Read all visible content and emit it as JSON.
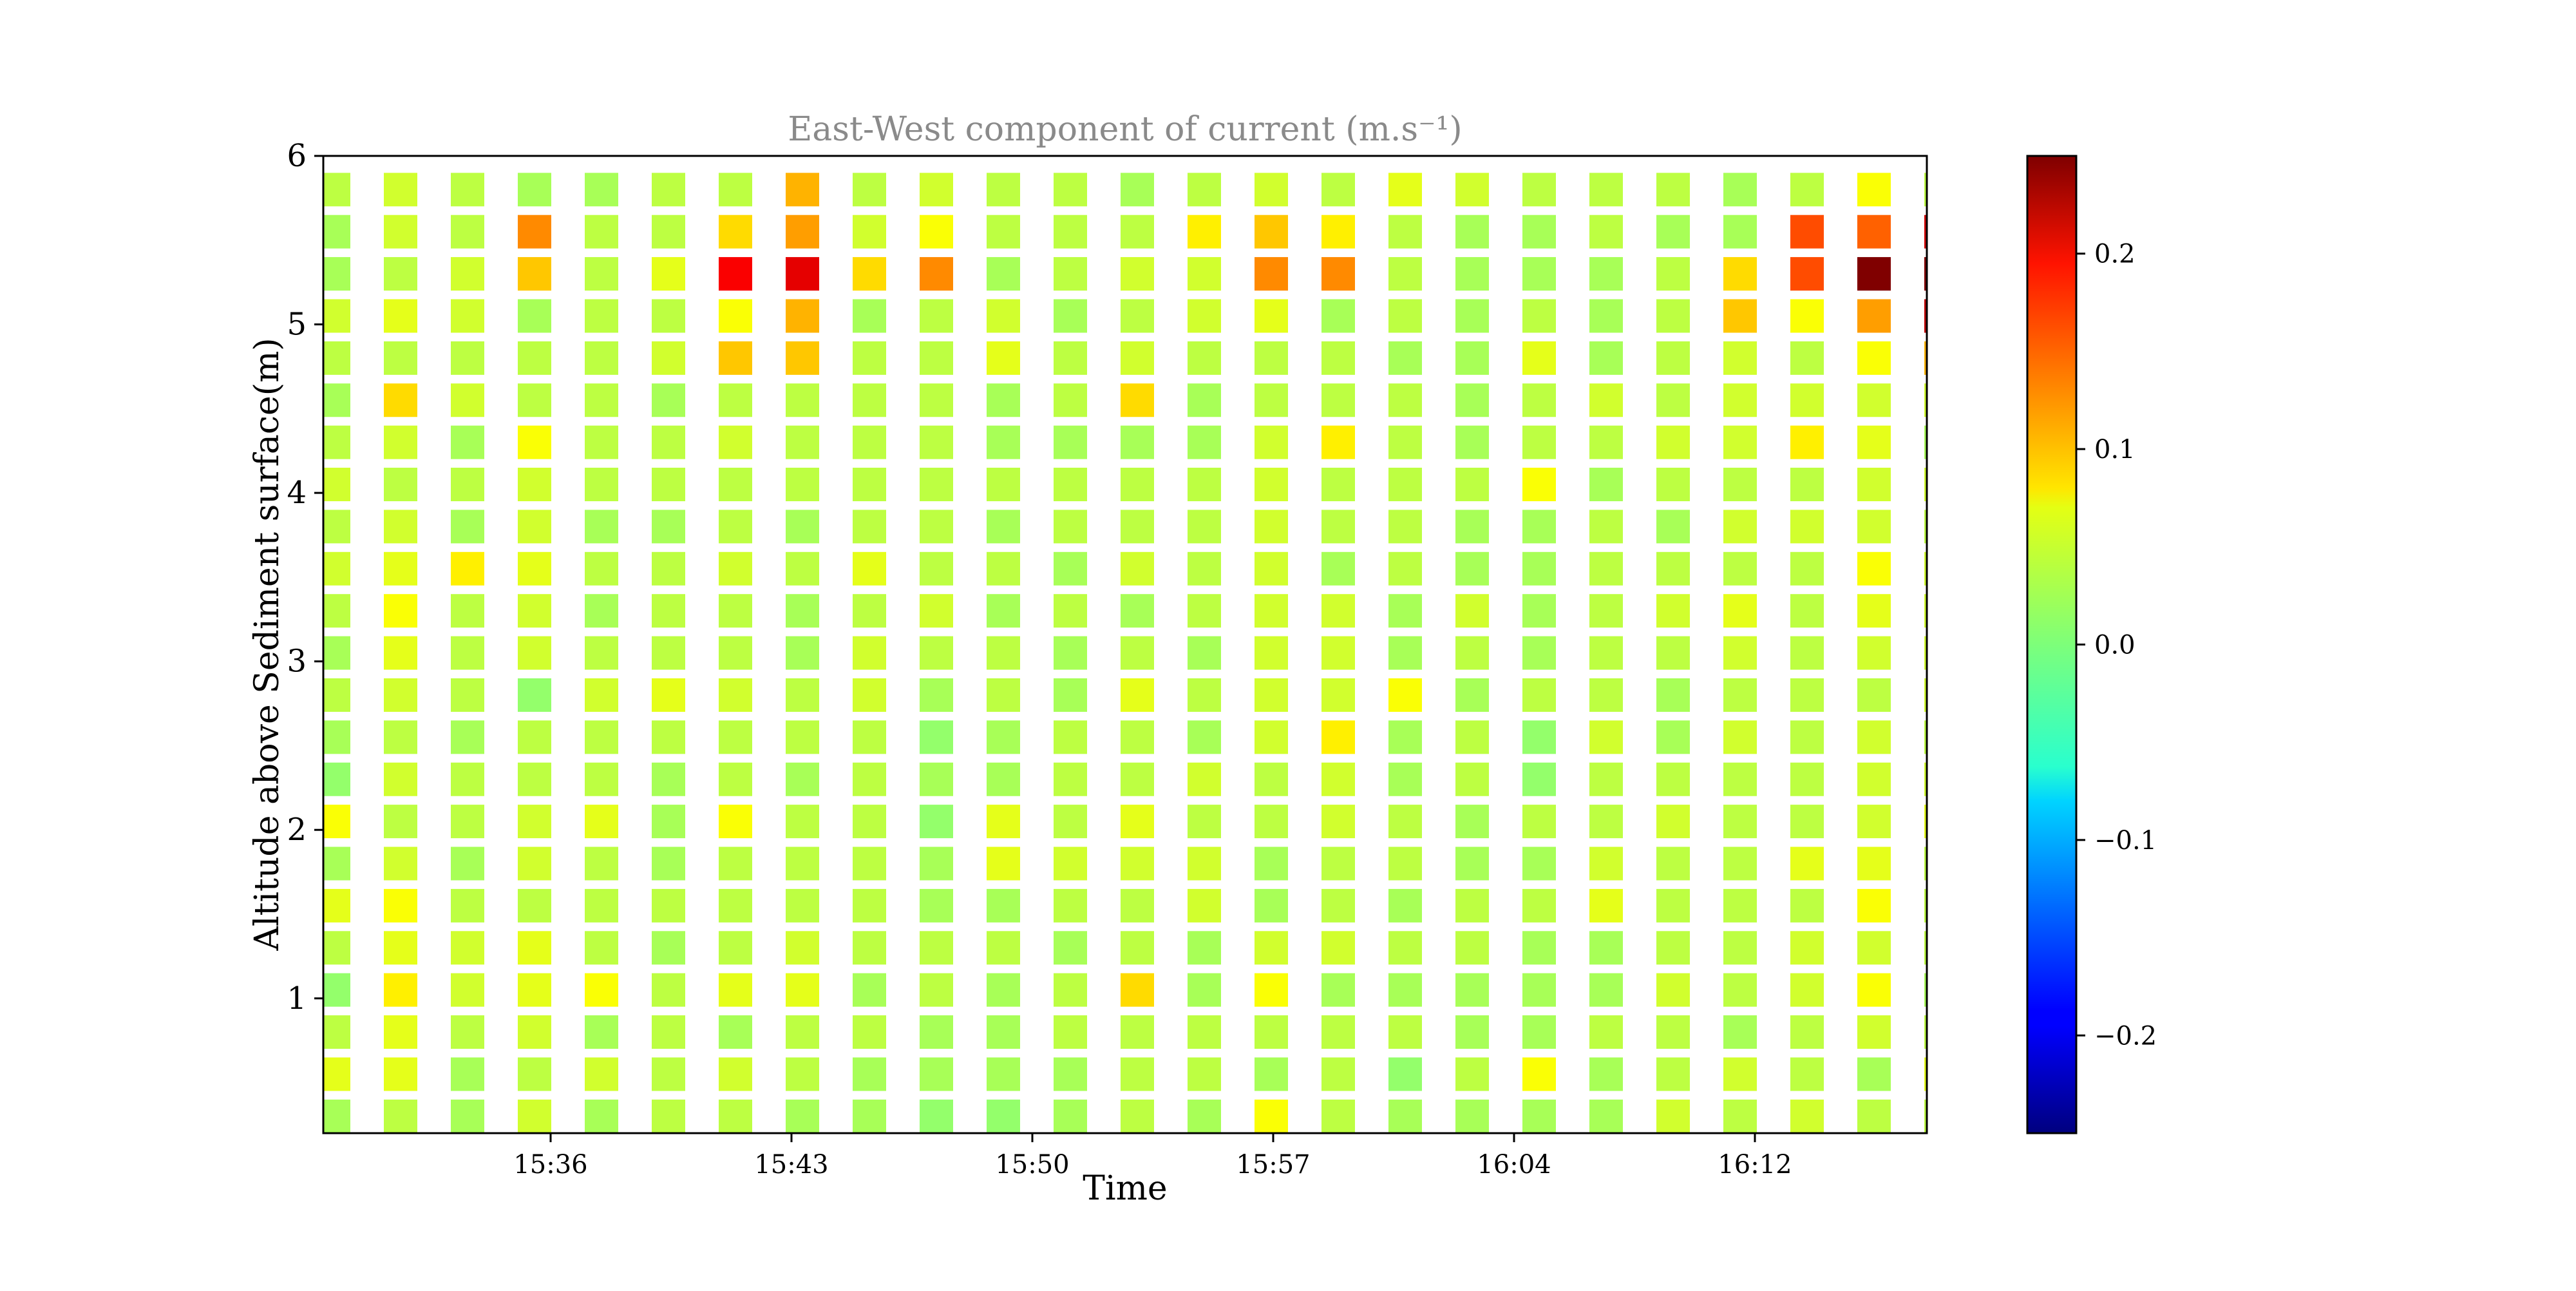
{
  "chart_data": {
    "type": "heatmap",
    "title": "East-West component of current (m.s⁻¹)",
    "xlabel": "Time",
    "ylabel": "Altitude above Sediment surface(m)",
    "x_tick_labels": [
      "15:36",
      "15:43",
      "15:50",
      "15:57",
      "16:04",
      "16:12"
    ],
    "y_tick_labels": [
      "1",
      "2",
      "3",
      "4",
      "5",
      "6"
    ],
    "ylim": [
      0.2,
      6.0
    ],
    "colorbar": {
      "colormap": "jet",
      "range": [
        -0.25,
        0.25
      ],
      "tick_labels": [
        "0.2",
        "0.1",
        "0.0",
        "−0.1",
        "−0.2"
      ],
      "tick_values": [
        0.2,
        0.1,
        0.0,
        -0.1,
        -0.2
      ]
    },
    "times": [
      "15:29",
      "15:31",
      "15:33",
      "15:35",
      "15:37",
      "15:39",
      "15:41",
      "15:43",
      "15:45",
      "15:47",
      "15:49",
      "15:51",
      "15:53",
      "15:55",
      "15:57",
      "15:59",
      "16:01",
      "16:03",
      "16:05",
      "16:07",
      "16:09",
      "16:11",
      "16:13",
      "16:15",
      "16:17"
    ],
    "altitudes": [
      0.3,
      0.55,
      0.8,
      1.05,
      1.3,
      1.55,
      1.8,
      2.05,
      2.3,
      2.55,
      2.8,
      3.05,
      3.3,
      3.55,
      3.8,
      4.05,
      4.3,
      4.55,
      4.8,
      5.05,
      5.3,
      5.55,
      5.8
    ],
    "values": [
      [
        0.02,
        0.03,
        0.02,
        0.04,
        0.02,
        0.03,
        0.03,
        0.02,
        0.02,
        0.01,
        0.01,
        0.02,
        0.03,
        0.02,
        0.06,
        0.03,
        0.02,
        0.02,
        0.02,
        0.02,
        0.04,
        0.03,
        0.04,
        0.03,
        0.03
      ],
      [
        0.05,
        0.05,
        0.02,
        0.03,
        0.04,
        0.03,
        0.04,
        0.03,
        0.02,
        0.02,
        0.02,
        0.02,
        0.03,
        0.03,
        0.02,
        0.03,
        0.01,
        0.03,
        0.06,
        0.02,
        0.03,
        0.04,
        0.03,
        0.02,
        0.05
      ],
      [
        0.03,
        0.05,
        0.03,
        0.04,
        0.02,
        0.03,
        0.02,
        0.03,
        0.03,
        0.02,
        0.02,
        0.03,
        0.03,
        0.03,
        0.03,
        0.03,
        0.03,
        0.02,
        0.02,
        0.03,
        0.03,
        0.02,
        0.03,
        0.04,
        0.03
      ],
      [
        0.01,
        0.07,
        0.04,
        0.05,
        0.06,
        0.03,
        0.05,
        0.05,
        0.02,
        0.03,
        0.02,
        0.03,
        0.08,
        0.02,
        0.06,
        0.02,
        0.02,
        0.02,
        0.02,
        0.02,
        0.04,
        0.03,
        0.04,
        0.06,
        0.02
      ],
      [
        0.03,
        0.05,
        0.04,
        0.05,
        0.03,
        0.02,
        0.03,
        0.04,
        0.03,
        0.03,
        0.03,
        0.02,
        0.03,
        0.02,
        0.04,
        0.04,
        0.03,
        0.03,
        0.02,
        0.02,
        0.03,
        0.03,
        0.04,
        0.04,
        0.03
      ],
      [
        0.05,
        0.06,
        0.03,
        0.03,
        0.03,
        0.03,
        0.03,
        0.03,
        0.03,
        0.02,
        0.02,
        0.03,
        0.03,
        0.04,
        0.02,
        0.03,
        0.02,
        0.03,
        0.03,
        0.05,
        0.03,
        0.03,
        0.03,
        0.06,
        0.03
      ],
      [
        0.02,
        0.04,
        0.02,
        0.04,
        0.03,
        0.02,
        0.03,
        0.03,
        0.03,
        0.02,
        0.05,
        0.04,
        0.04,
        0.04,
        0.02,
        0.03,
        0.03,
        0.02,
        0.02,
        0.04,
        0.03,
        0.03,
        0.05,
        0.05,
        0.03
      ],
      [
        0.06,
        0.03,
        0.03,
        0.04,
        0.05,
        0.02,
        0.06,
        0.03,
        0.03,
        0.01,
        0.05,
        0.03,
        0.05,
        0.03,
        0.03,
        0.04,
        0.03,
        0.02,
        0.03,
        0.03,
        0.04,
        0.03,
        0.03,
        0.04,
        0.05
      ],
      [
        0.01,
        0.04,
        0.03,
        0.03,
        0.03,
        0.02,
        0.03,
        0.02,
        0.03,
        0.02,
        0.02,
        0.03,
        0.03,
        0.04,
        0.03,
        0.04,
        0.02,
        0.03,
        0.01,
        0.03,
        0.03,
        0.03,
        0.03,
        0.04,
        0.04
      ],
      [
        0.02,
        0.03,
        0.02,
        0.03,
        0.03,
        0.03,
        0.03,
        0.03,
        0.03,
        0.01,
        0.02,
        0.03,
        0.03,
        0.02,
        0.04,
        0.07,
        0.02,
        0.03,
        0.01,
        0.04,
        0.02,
        0.04,
        0.03,
        0.04,
        0.03
      ],
      [
        0.03,
        0.04,
        0.03,
        0.01,
        0.04,
        0.05,
        0.04,
        0.03,
        0.04,
        0.02,
        0.03,
        0.02,
        0.05,
        0.03,
        0.04,
        0.04,
        0.06,
        0.02,
        0.03,
        0.03,
        0.02,
        0.03,
        0.03,
        0.03,
        0.04
      ],
      [
        0.02,
        0.05,
        0.03,
        0.04,
        0.03,
        0.03,
        0.03,
        0.02,
        0.04,
        0.03,
        0.03,
        0.02,
        0.03,
        0.02,
        0.04,
        0.04,
        0.02,
        0.03,
        0.02,
        0.03,
        0.03,
        0.04,
        0.03,
        0.04,
        0.04
      ],
      [
        0.03,
        0.06,
        0.03,
        0.04,
        0.02,
        0.03,
        0.03,
        0.02,
        0.03,
        0.04,
        0.02,
        0.03,
        0.02,
        0.03,
        0.04,
        0.04,
        0.02,
        0.04,
        0.02,
        0.03,
        0.04,
        0.05,
        0.03,
        0.05,
        0.04
      ],
      [
        0.04,
        0.05,
        0.07,
        0.05,
        0.03,
        0.03,
        0.04,
        0.03,
        0.05,
        0.03,
        0.03,
        0.02,
        0.04,
        0.03,
        0.04,
        0.02,
        0.03,
        0.02,
        0.02,
        0.03,
        0.03,
        0.03,
        0.03,
        0.06,
        0.04
      ],
      [
        0.03,
        0.04,
        0.02,
        0.04,
        0.02,
        0.02,
        0.03,
        0.02,
        0.03,
        0.03,
        0.02,
        0.03,
        0.03,
        0.03,
        0.04,
        0.03,
        0.03,
        0.02,
        0.02,
        0.03,
        0.02,
        0.04,
        0.04,
        0.04,
        0.03
      ],
      [
        0.04,
        0.03,
        0.03,
        0.04,
        0.03,
        0.03,
        0.03,
        0.03,
        0.03,
        0.03,
        0.03,
        0.03,
        0.03,
        0.03,
        0.04,
        0.03,
        0.03,
        0.03,
        0.06,
        0.02,
        0.03,
        0.03,
        0.03,
        0.04,
        0.04
      ],
      [
        0.03,
        0.04,
        0.02,
        0.06,
        0.03,
        0.03,
        0.04,
        0.03,
        0.03,
        0.03,
        0.02,
        0.02,
        0.02,
        0.02,
        0.04,
        0.07,
        0.03,
        0.02,
        0.03,
        0.03,
        0.04,
        0.04,
        0.07,
        0.05,
        0.02
      ],
      [
        0.02,
        0.08,
        0.04,
        0.03,
        0.03,
        0.02,
        0.03,
        0.03,
        0.03,
        0.03,
        0.02,
        0.03,
        0.08,
        0.02,
        0.03,
        0.03,
        0.03,
        0.02,
        0.03,
        0.04,
        0.03,
        0.04,
        0.04,
        0.04,
        0.04
      ],
      [
        0.03,
        0.03,
        0.03,
        0.03,
        0.03,
        0.04,
        0.09,
        0.09,
        0.03,
        0.03,
        0.05,
        0.03,
        0.04,
        0.03,
        0.03,
        0.03,
        0.02,
        0.02,
        0.05,
        0.02,
        0.03,
        0.04,
        0.03,
        0.06,
        0.1
      ],
      [
        0.04,
        0.05,
        0.04,
        0.02,
        0.03,
        0.03,
        0.06,
        0.1,
        0.02,
        0.03,
        0.04,
        0.02,
        0.03,
        0.04,
        0.05,
        0.02,
        0.03,
        0.02,
        0.03,
        0.02,
        0.03,
        0.09,
        0.06,
        0.11,
        0.22
      ],
      [
        0.02,
        0.03,
        0.04,
        0.09,
        0.03,
        0.05,
        0.19,
        0.2,
        0.08,
        0.12,
        0.02,
        0.03,
        0.04,
        0.04,
        0.12,
        0.12,
        0.03,
        0.02,
        0.02,
        0.02,
        0.03,
        0.08,
        0.15,
        0.25,
        0.25
      ],
      [
        0.02,
        0.04,
        0.03,
        0.12,
        0.03,
        0.03,
        0.08,
        0.11,
        0.04,
        0.06,
        0.03,
        0.03,
        0.03,
        0.07,
        0.09,
        0.07,
        0.03,
        0.02,
        0.02,
        0.03,
        0.02,
        0.02,
        0.15,
        0.14,
        0.21
      ],
      [
        0.03,
        0.04,
        0.03,
        0.02,
        0.02,
        0.03,
        0.03,
        0.1,
        0.03,
        0.04,
        0.03,
        0.03,
        0.02,
        0.03,
        0.04,
        0.03,
        0.05,
        0.04,
        0.03,
        0.03,
        0.03,
        0.02,
        0.03,
        0.06,
        0.03
      ]
    ]
  }
}
